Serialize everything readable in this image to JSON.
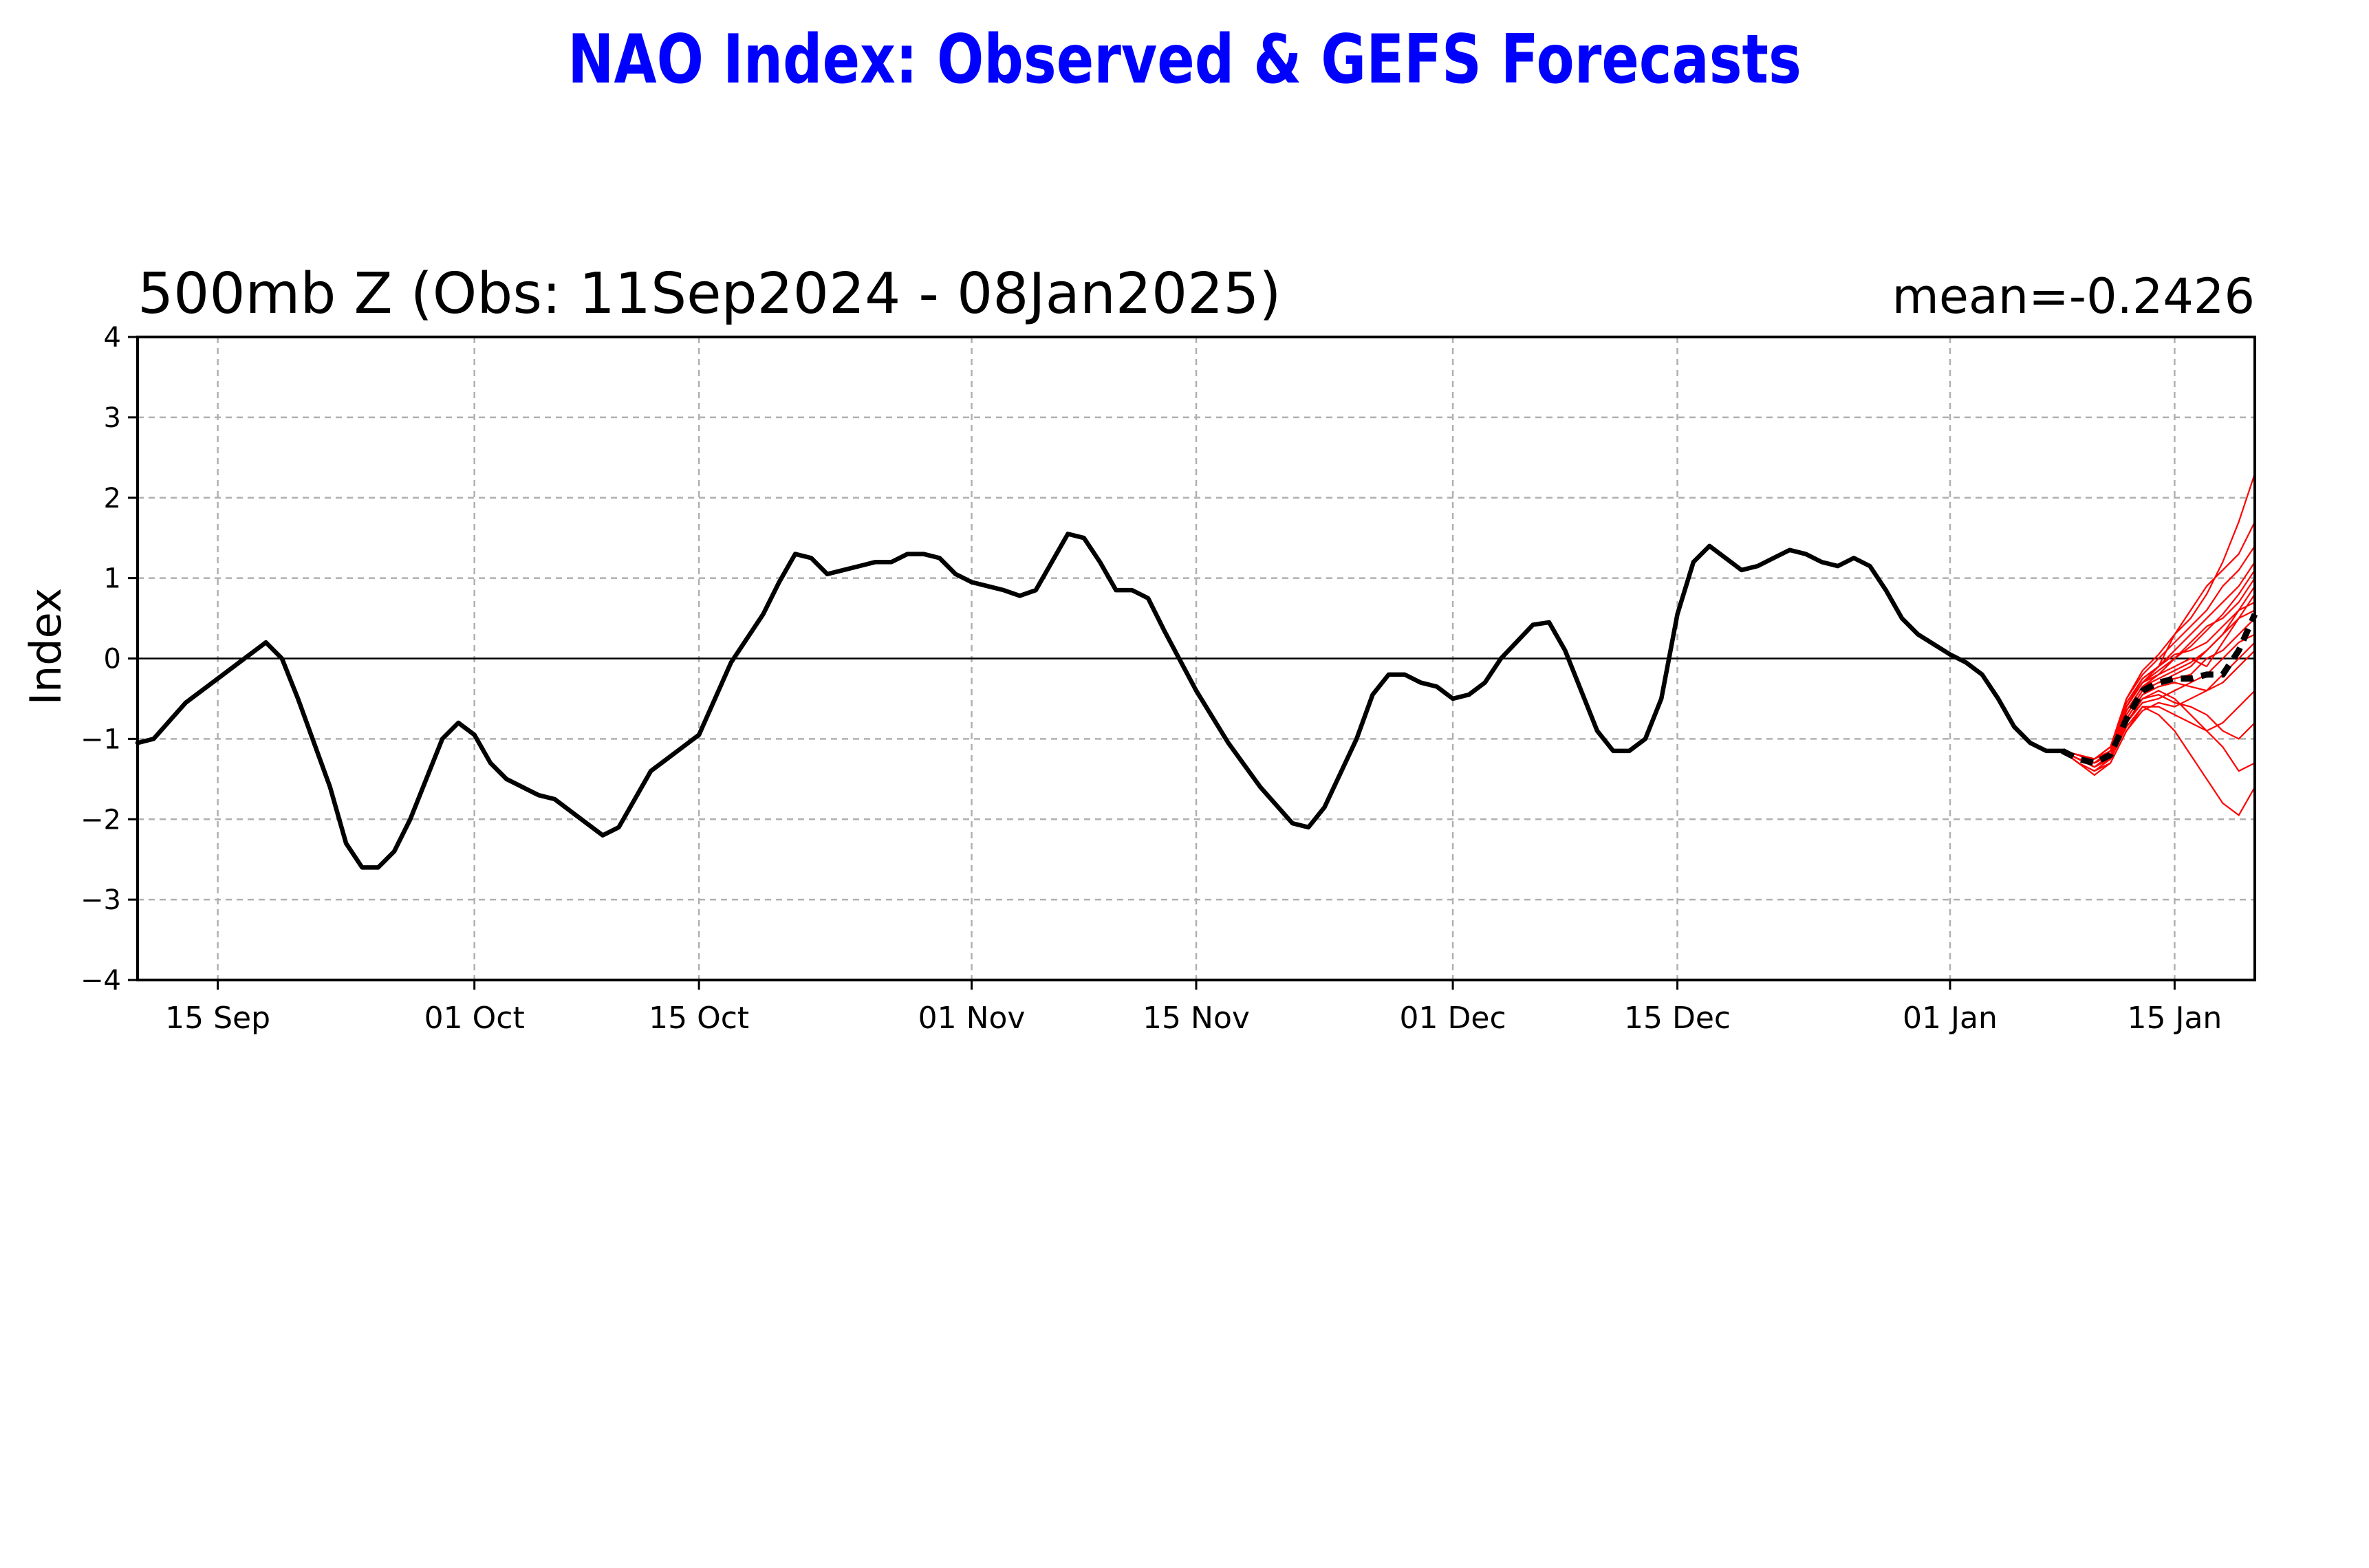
{
  "title": "NAO Index: Observed & GEFS Forecasts",
  "subtitle": "500mb Z (Obs: 11Sep2024 - 08Jan2025)",
  "mean_label": "mean=-0.2426",
  "colors": {
    "title": "#0000ff",
    "observed": "#000000",
    "members": "#ff0000",
    "ensemble_mean": "#000000",
    "grid": "#b0b0b0"
  },
  "chart_data": {
    "type": "line",
    "title": "500mb Z (Obs: 11Sep2024 - 08Jan2025)",
    "ylabel": "Index",
    "xlabel": "",
    "ylim": [
      -4,
      4
    ],
    "xlim": [
      "2024-09-10",
      "2025-01-20"
    ],
    "yticks": [
      4,
      3,
      2,
      1,
      0,
      -1,
      -2,
      -3,
      -4
    ],
    "ytick_labels": [
      "4",
      "3",
      "2",
      "1",
      "0",
      "−1",
      "−2",
      "−3",
      "−4"
    ],
    "xticks": [
      {
        "date": "2024-09-15",
        "label": "15 Sep"
      },
      {
        "date": "2024-10-01",
        "label": "01 Oct"
      },
      {
        "date": "2024-10-15",
        "label": "15 Oct"
      },
      {
        "date": "2024-11-01",
        "label": "01 Nov"
      },
      {
        "date": "2024-11-15",
        "label": "15 Nov"
      },
      {
        "date": "2024-12-01",
        "label": "01 Dec"
      },
      {
        "date": "2024-12-15",
        "label": "15 Dec"
      },
      {
        "date": "2025-01-01",
        "label": "01 Jan"
      },
      {
        "date": "2025-01-15",
        "label": "15 Jan"
      }
    ],
    "grid": true,
    "zero_line": true,
    "annotation": "mean=-0.2426",
    "series": [
      {
        "style": "solid",
        "points": [
          [
            "2024-09-10",
            -1.05
          ],
          [
            "2024-09-11",
            -1.0
          ],
          [
            "2024-09-13",
            -0.55
          ],
          [
            "2024-09-15",
            -0.25
          ],
          [
            "2024-09-17",
            0.05
          ],
          [
            "2024-09-18",
            0.2
          ],
          [
            "2024-09-19",
            0.0
          ],
          [
            "2024-09-20",
            -0.5
          ],
          [
            "2024-09-22",
            -1.6
          ],
          [
            "2024-09-23",
            -2.3
          ],
          [
            "2024-09-24",
            -2.6
          ],
          [
            "2024-09-25",
            -2.6
          ],
          [
            "2024-09-26",
            -2.4
          ],
          [
            "2024-09-27",
            -2.0
          ],
          [
            "2024-09-29",
            -1.0
          ],
          [
            "2024-09-30",
            -0.8
          ],
          [
            "2024-10-01",
            -0.95
          ],
          [
            "2024-10-02",
            -1.3
          ],
          [
            "2024-10-03",
            -1.5
          ],
          [
            "2024-10-05",
            -1.7
          ],
          [
            "2024-10-06",
            -1.75
          ],
          [
            "2024-10-08",
            -2.05
          ],
          [
            "2024-10-09",
            -2.2
          ],
          [
            "2024-10-10",
            -2.1
          ],
          [
            "2024-10-12",
            -1.4
          ],
          [
            "2024-10-13",
            -1.25
          ],
          [
            "2024-10-14",
            -1.1
          ],
          [
            "2024-10-15",
            -0.95
          ],
          [
            "2024-10-17",
            -0.05
          ],
          [
            "2024-10-19",
            0.55
          ],
          [
            "2024-10-20",
            0.95
          ],
          [
            "2024-10-21",
            1.3
          ],
          [
            "2024-10-22",
            1.25
          ],
          [
            "2024-10-23",
            1.05
          ],
          [
            "2024-10-24",
            1.1
          ],
          [
            "2024-10-25",
            1.15
          ],
          [
            "2024-10-26",
            1.2
          ],
          [
            "2024-10-27",
            1.2
          ],
          [
            "2024-10-28",
            1.3
          ],
          [
            "2024-10-29",
            1.3
          ],
          [
            "2024-10-30",
            1.25
          ],
          [
            "2024-10-31",
            1.05
          ],
          [
            "2024-11-01",
            0.95
          ],
          [
            "2024-11-02",
            0.9
          ],
          [
            "2024-11-03",
            0.85
          ],
          [
            "2024-11-04",
            0.78
          ],
          [
            "2024-11-05",
            0.85
          ],
          [
            "2024-11-06",
            1.2
          ],
          [
            "2024-11-07",
            1.55
          ],
          [
            "2024-11-08",
            1.5
          ],
          [
            "2024-11-09",
            1.2
          ],
          [
            "2024-11-10",
            0.85
          ],
          [
            "2024-11-11",
            0.85
          ],
          [
            "2024-11-12",
            0.75
          ],
          [
            "2024-11-13",
            0.35
          ],
          [
            "2024-11-15",
            -0.4
          ],
          [
            "2024-11-17",
            -1.05
          ],
          [
            "2024-11-19",
            -1.6
          ],
          [
            "2024-11-21",
            -2.05
          ],
          [
            "2024-11-22",
            -2.1
          ],
          [
            "2024-11-23",
            -1.85
          ],
          [
            "2024-11-25",
            -1.0
          ],
          [
            "2024-11-26",
            -0.45
          ],
          [
            "2024-11-27",
            -0.2
          ],
          [
            "2024-11-28",
            -0.2
          ],
          [
            "2024-11-29",
            -0.3
          ],
          [
            "2024-11-30",
            -0.35
          ],
          [
            "2024-12-01",
            -0.5
          ],
          [
            "2024-12-02",
            -0.45
          ],
          [
            "2024-12-03",
            -0.3
          ],
          [
            "2024-12-04",
            0.0
          ],
          [
            "2024-12-06",
            0.42
          ],
          [
            "2024-12-07",
            0.45
          ],
          [
            "2024-12-08",
            0.1
          ],
          [
            "2024-12-10",
            -0.9
          ],
          [
            "2024-12-11",
            -1.15
          ],
          [
            "2024-12-12",
            -1.15
          ],
          [
            "2024-12-13",
            -1.0
          ],
          [
            "2024-12-14",
            -0.5
          ],
          [
            "2024-12-15",
            0.55
          ],
          [
            "2024-12-16",
            1.2
          ],
          [
            "2024-12-17",
            1.4
          ],
          [
            "2024-12-18",
            1.25
          ],
          [
            "2024-12-19",
            1.1
          ],
          [
            "2024-12-20",
            1.15
          ],
          [
            "2024-12-21",
            1.25
          ],
          [
            "2024-12-22",
            1.35
          ],
          [
            "2024-12-23",
            1.3
          ],
          [
            "2024-12-24",
            1.2
          ],
          [
            "2024-12-25",
            1.15
          ],
          [
            "2024-12-26",
            1.25
          ],
          [
            "2024-12-27",
            1.15
          ],
          [
            "2024-12-28",
            0.85
          ],
          [
            "2024-12-29",
            0.5
          ],
          [
            "2024-12-30",
            0.3
          ],
          [
            "2025-01-01",
            0.05
          ],
          [
            "2025-01-02",
            -0.05
          ],
          [
            "2025-01-03",
            -0.2
          ],
          [
            "2025-01-04",
            -0.5
          ],
          [
            "2025-01-05",
            -0.85
          ],
          [
            "2025-01-06",
            -1.05
          ],
          [
            "2025-01-07",
            -1.15
          ],
          [
            "2025-01-08",
            -1.15
          ]
        ]
      },
      {
        "style": "dashed",
        "points": [
          [
            "2025-01-08",
            -1.15
          ],
          [
            "2025-01-09",
            -1.25
          ],
          [
            "2025-01-10",
            -1.3
          ],
          [
            "2025-01-11",
            -1.2
          ],
          [
            "2025-01-12",
            -0.75
          ],
          [
            "2025-01-13",
            -0.4
          ],
          [
            "2025-01-14",
            -0.3
          ],
          [
            "2025-01-15",
            -0.25
          ],
          [
            "2025-01-16",
            -0.25
          ],
          [
            "2025-01-17",
            -0.2
          ],
          [
            "2025-01-18",
            -0.2
          ],
          [
            "2025-01-19",
            0.1
          ],
          [
            "2025-01-20",
            0.55
          ]
        ]
      }
    ],
    "members": {
      "style": "thin",
      "x": [
        "2025-01-08",
        "2025-01-09",
        "2025-01-10",
        "2025-01-11",
        "2025-01-12",
        "2025-01-13",
        "2025-01-14",
        "2025-01-15",
        "2025-01-16",
        "2025-01-17",
        "2025-01-18",
        "2025-01-19",
        "2025-01-20"
      ],
      "values": [
        [
          -1.15,
          -1.2,
          -1.3,
          -1.15,
          -0.6,
          -0.3,
          -0.1,
          0.3,
          0.5,
          0.8,
          1.2,
          1.7,
          2.3
        ],
        [
          -1.15,
          -1.25,
          -1.35,
          -1.25,
          -0.8,
          -0.5,
          -0.4,
          -0.5,
          -0.7,
          -0.9,
          -1.1,
          -1.4,
          -1.3
        ],
        [
          -1.15,
          -1.3,
          -1.4,
          -1.3,
          -0.9,
          -0.6,
          -0.7,
          -0.9,
          -1.2,
          -1.5,
          -1.8,
          -1.95,
          -1.6
        ],
        [
          -1.15,
          -1.2,
          -1.25,
          -1.1,
          -0.5,
          -0.2,
          0.0,
          0.2,
          0.4,
          0.6,
          0.9,
          1.1,
          1.4
        ],
        [
          -1.15,
          -1.25,
          -1.3,
          -1.2,
          -0.7,
          -0.4,
          -0.3,
          -0.2,
          -0.1,
          0.1,
          0.3,
          0.6,
          0.9
        ],
        [
          -1.15,
          -1.2,
          -1.3,
          -1.15,
          -0.65,
          -0.35,
          -0.2,
          -0.1,
          0.0,
          -0.1,
          0.2,
          0.5,
          0.8
        ],
        [
          -1.15,
          -1.25,
          -1.35,
          -1.2,
          -0.8,
          -0.55,
          -0.5,
          -0.4,
          -0.3,
          -0.2,
          0.0,
          0.2,
          0.3
        ],
        [
          -1.15,
          -1.2,
          -1.25,
          -1.1,
          -0.55,
          -0.25,
          -0.1,
          0.1,
          0.3,
          0.5,
          0.7,
          0.9,
          1.2
        ],
        [
          -1.15,
          -1.3,
          -1.4,
          -1.25,
          -0.85,
          -0.6,
          -0.6,
          -0.7,
          -0.8,
          -0.9,
          -0.8,
          -0.6,
          -0.4
        ],
        [
          -1.15,
          -1.2,
          -1.3,
          -1.15,
          -0.6,
          -0.3,
          -0.15,
          0.0,
          0.2,
          0.4,
          0.5,
          0.7,
          1.0
        ],
        [
          -1.15,
          -1.25,
          -1.3,
          -1.2,
          -0.75,
          -0.45,
          -0.35,
          -0.3,
          -0.35,
          -0.4,
          -0.3,
          -0.1,
          0.1
        ],
        [
          -1.15,
          -1.2,
          -1.25,
          -1.1,
          -0.5,
          -0.15,
          0.05,
          0.3,
          0.6,
          0.9,
          1.1,
          1.3,
          1.7
        ],
        [
          -1.15,
          -1.25,
          -1.35,
          -1.25,
          -0.8,
          -0.5,
          -0.45,
          -0.55,
          -0.6,
          -0.7,
          -0.9,
          -1.0,
          -0.8
        ],
        [
          -1.15,
          -1.2,
          -1.3,
          -1.15,
          -0.65,
          -0.35,
          -0.25,
          -0.15,
          -0.05,
          0.1,
          0.3,
          0.5,
          0.6
        ],
        [
          -1.15,
          -1.25,
          -1.3,
          -1.2,
          -0.7,
          -0.4,
          -0.3,
          -0.25,
          -0.2,
          0.0,
          0.1,
          0.3,
          0.5
        ],
        [
          -1.15,
          -1.2,
          -1.25,
          -1.15,
          -0.6,
          -0.3,
          -0.2,
          0.0,
          0.15,
          0.35,
          0.55,
          0.8,
          1.1
        ],
        [
          -1.15,
          -1.3,
          -1.45,
          -1.3,
          -0.9,
          -0.65,
          -0.55,
          -0.6,
          -0.5,
          -0.4,
          -0.2,
          0.0,
          0.2
        ],
        [
          -1.15,
          -1.2,
          -1.3,
          -1.15,
          -0.6,
          -0.25,
          -0.1,
          0.05,
          0.1,
          0.2,
          0.4,
          0.6,
          0.7
        ]
      ]
    }
  }
}
